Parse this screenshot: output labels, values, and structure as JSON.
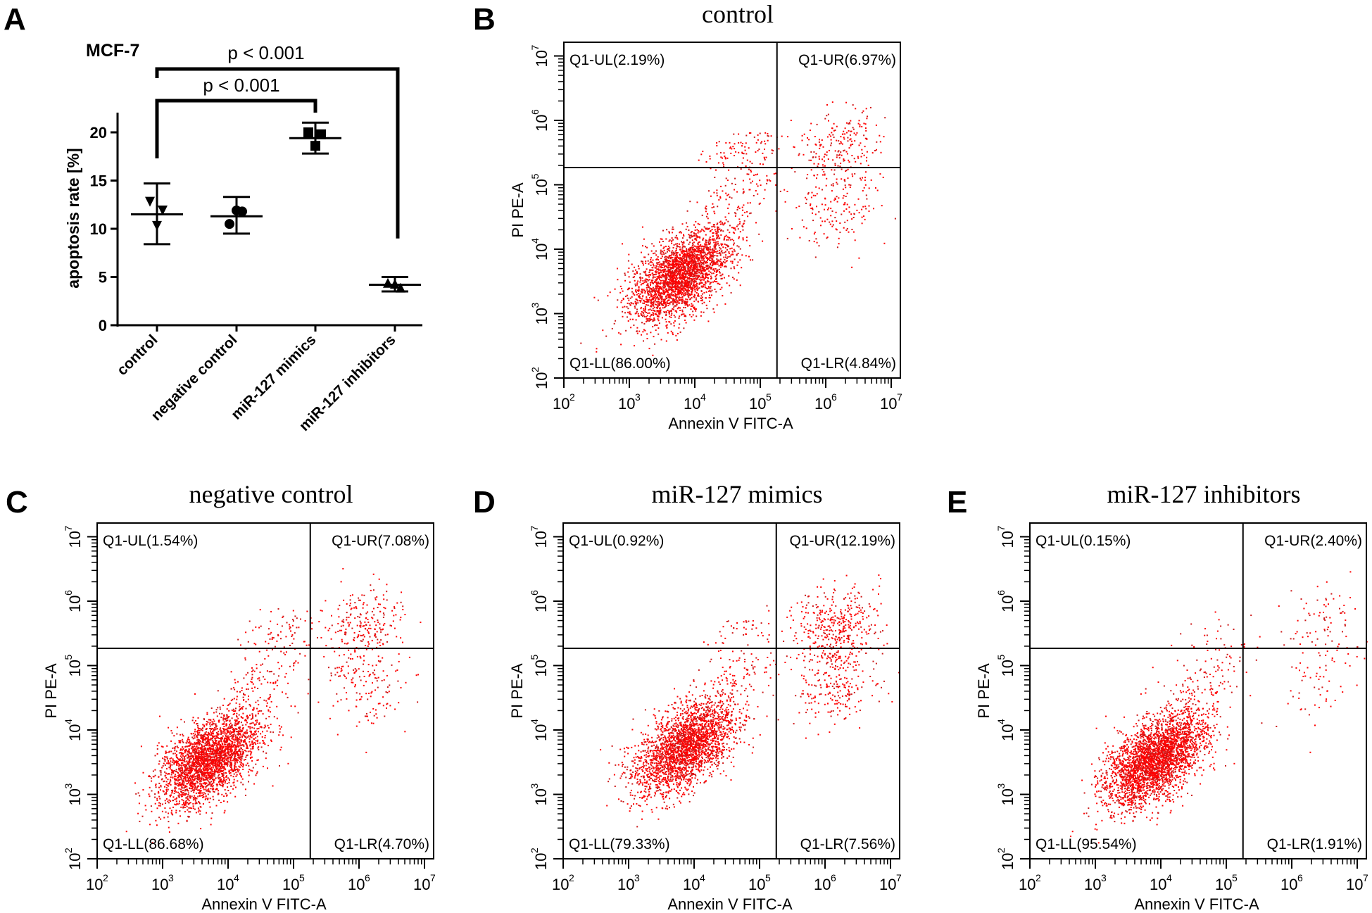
{
  "chart_data": [
    {
      "panel": "A",
      "type": "scatter",
      "title": "MCF-7",
      "xlabel": "",
      "ylabel": "apoptosis rate [%]",
      "ylim": [
        0,
        22
      ],
      "yticks": [
        0,
        5,
        10,
        15,
        20
      ],
      "categories": [
        "control",
        "negative control",
        "miR-127 mimics",
        "miR-127 inhibitors"
      ],
      "markers": [
        "triangle-down",
        "circle",
        "square",
        "triangle-up"
      ],
      "series": [
        {
          "name": "control",
          "points": [
            12.8,
            11.9,
            10.3
          ],
          "mean": 11.5,
          "error_high": 14.7,
          "error_low": 8.4
        },
        {
          "name": "negative control",
          "points": [
            11.9,
            11.8,
            10.5
          ],
          "mean": 11.3,
          "error_high": 13.3,
          "error_low": 9.5
        },
        {
          "name": "miR-127 mimics",
          "points": [
            20.0,
            19.8,
            18.6
          ],
          "mean": 19.4,
          "error_high": 21.0,
          "error_low": 17.8
        },
        {
          "name": "miR-127 inhibitors",
          "points": [
            4.4,
            3.9,
            4.3
          ],
          "mean": 4.2,
          "error_high": 5.0,
          "error_low": 3.5
        }
      ],
      "annotations": [
        {
          "from": "control",
          "to": "miR-127 inhibitors",
          "text": "p < 0.001",
          "level": "upper"
        },
        {
          "from": "control",
          "to": "miR-127 mimics",
          "text": "p < 0.001",
          "level": "lower"
        }
      ]
    },
    {
      "panel": "B",
      "type": "scatter",
      "title": "control",
      "xlabel": "Annexin V FITC-A",
      "ylabel": "PI PE-A",
      "xscale": "log",
      "yscale": "log",
      "xlim": [
        100,
        10000000
      ],
      "ylim": [
        100,
        10000000
      ],
      "quadrant_threshold": [
        180000,
        185000
      ],
      "quadrants": {
        "UL": "Q1-UL(2.19%)",
        "UR": "Q1-UR(6.97%)",
        "LL": "Q1-LL(86.00%)",
        "LR": "Q1-LR(4.84%)"
      },
      "quadrant_percent": {
        "UL": 2.19,
        "UR": 6.97,
        "LL": 86.0,
        "LR": 4.84
      },
      "main_cluster_center": [
        6000,
        4000
      ],
      "late_cluster_center": [
        1500000,
        400000
      ]
    },
    {
      "panel": "C",
      "type": "scatter",
      "title": "negative control",
      "xlabel": "Annexin V FITC-A",
      "ylabel": "PI PE-A",
      "xscale": "log",
      "yscale": "log",
      "xlim": [
        100,
        10000000
      ],
      "ylim": [
        100,
        10000000
      ],
      "quadrant_threshold": [
        180000,
        185000
      ],
      "quadrants": {
        "UL": "Q1-UL(1.54%)",
        "UR": "Q1-UR(7.08%)",
        "LL": "Q1-LL(86.68%)",
        "LR": "Q1-LR(4.70%)"
      },
      "quadrant_percent": {
        "UL": 1.54,
        "UR": 7.08,
        "LL": 86.68,
        "LR": 4.7
      },
      "main_cluster_center": [
        5000,
        3500
      ],
      "late_cluster_center": [
        1200000,
        500000
      ]
    },
    {
      "panel": "D",
      "type": "scatter",
      "title": "miR-127 mimics",
      "xlabel": "Annexin V FITC-A",
      "ylabel": "PI PE-A",
      "xscale": "log",
      "yscale": "log",
      "xlim": [
        100,
        10000000
      ],
      "ylim": [
        100,
        10000000
      ],
      "quadrant_threshold": [
        180000,
        185000
      ],
      "quadrants": {
        "UL": "Q1-UL(0.92%)",
        "UR": "Q1-UR(12.19%)",
        "LL": "Q1-LL(79.33%)",
        "LR": "Q1-LR(7.56%)"
      },
      "quadrant_percent": {
        "UL": 0.92,
        "UR": 12.19,
        "LL": 79.33,
        "LR": 7.56
      },
      "main_cluster_center": [
        7000,
        5500
      ],
      "late_cluster_center": [
        1500000,
        450000
      ]
    },
    {
      "panel": "E",
      "type": "scatter",
      "title": "miR-127 inhibitors",
      "xlabel": "Annexin V FITC-A",
      "ylabel": "PI PE-A",
      "xscale": "log",
      "yscale": "log",
      "xlim": [
        100,
        10000000
      ],
      "ylim": [
        100,
        10000000
      ],
      "quadrant_threshold": [
        180000,
        185000
      ],
      "quadrants": {
        "UL": "Q1-UL(0.15%)",
        "UR": "Q1-UR(2.40%)",
        "LL": "Q1-LL(95.54%)",
        "LR": "Q1-LR(1.91%)"
      },
      "quadrant_percent": {
        "UL": 0.15,
        "UR": 2.4,
        "LL": 95.54,
        "LR": 1.91
      },
      "main_cluster_center": [
        8000,
        3500
      ],
      "late_cluster_center": [
        2500000,
        500000
      ]
    }
  ],
  "panel_letters": [
    "A",
    "B",
    "C",
    "D",
    "E"
  ],
  "flow_ticks": [
    "10",
    "10",
    "10",
    "10",
    "10",
    "10"
  ],
  "flow_tick_exponents": [
    "2",
    "3",
    "4",
    "5",
    "6",
    "7"
  ],
  "colors": {
    "dots": "#ff0000",
    "dots_dark": "#cc1a1a",
    "axis": "#000000"
  }
}
